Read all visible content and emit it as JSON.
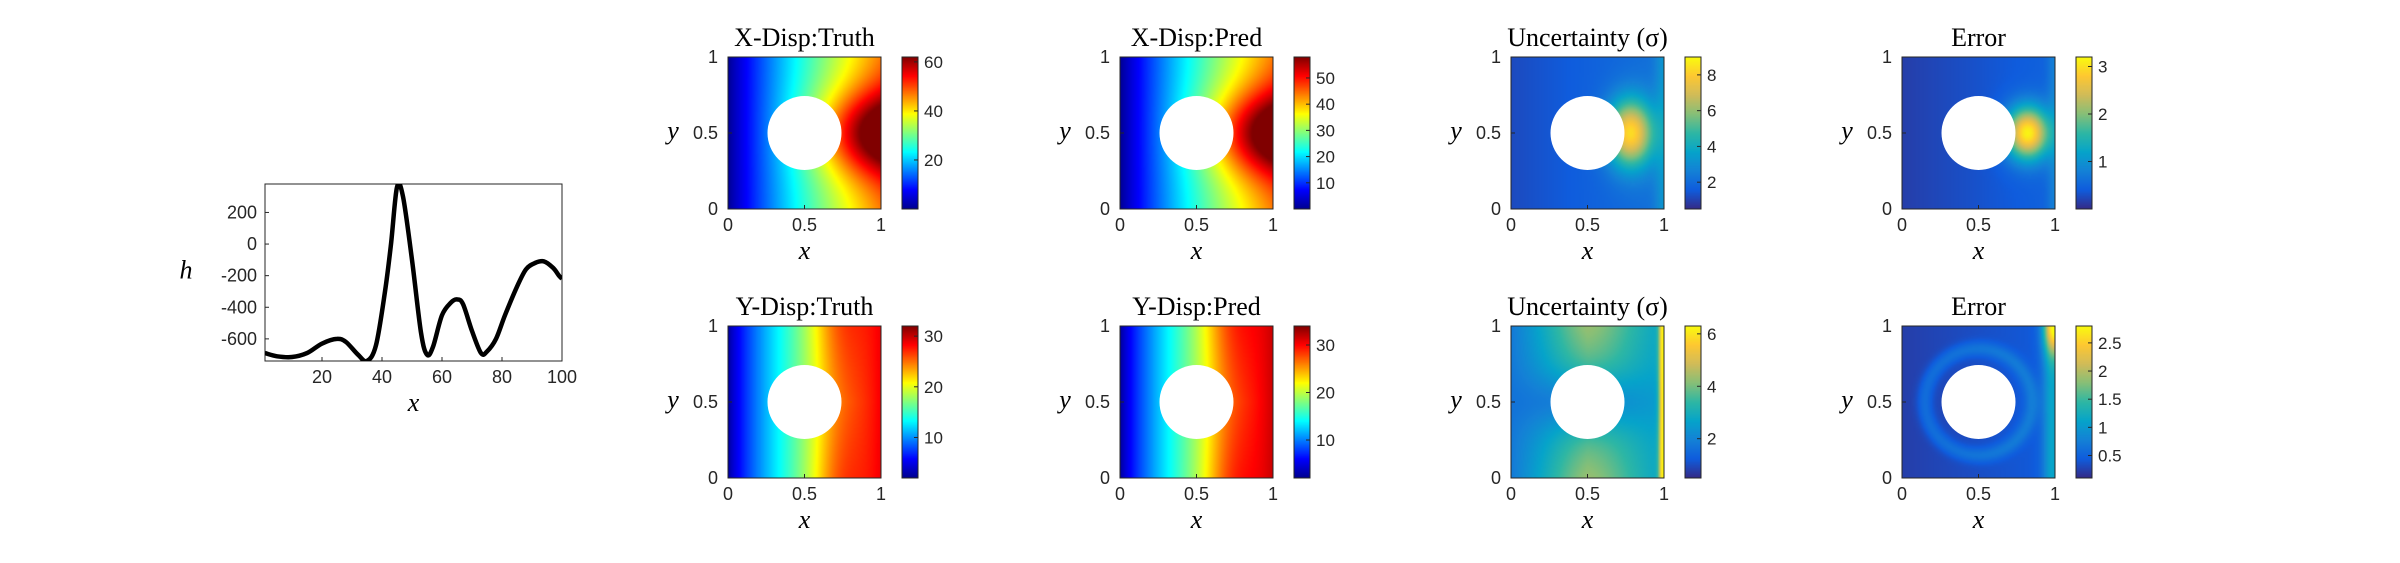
{
  "colors": {
    "jet": [
      "#00008f",
      "#0000ff",
      "#00ffff",
      "#ffff00",
      "#ff0000",
      "#800000"
    ],
    "parula": [
      "#352a87",
      "#0f5cdd",
      "#1481d6",
      "#06a4ca",
      "#2eb7a4",
      "#87bf77",
      "#d1bb59",
      "#fec832",
      "#f9fb0e"
    ],
    "line": "#000000",
    "hole": "#ffffff"
  },
  "chart_data": [
    {
      "type": "line",
      "xlabel": "x",
      "ylabel": "h",
      "xlim": [
        1,
        100
      ],
      "ylim": [
        -740,
        380
      ],
      "xticks": [
        "20",
        "40",
        "60",
        "80",
        "100"
      ],
      "yticks": [
        "200",
        "0",
        "-200",
        "-400",
        "-600"
      ],
      "series": [
        {
          "x": [
            1,
            5,
            10,
            15,
            20,
            25,
            28,
            32,
            35,
            38,
            41,
            43,
            45,
            47,
            50,
            53,
            55,
            57,
            60,
            63,
            65,
            67,
            70,
            73,
            75,
            78,
            81,
            85,
            88,
            91,
            94,
            97,
            99,
            100
          ],
          "values": [
            -690,
            -710,
            -715,
            -690,
            -630,
            -600,
            -620,
            -700,
            -740,
            -640,
            -300,
            0,
            360,
            300,
            -100,
            -560,
            -700,
            -650,
            -450,
            -370,
            -350,
            -380,
            -550,
            -690,
            -680,
            -600,
            -450,
            -270,
            -160,
            -120,
            -110,
            -150,
            -200,
            -220
          ]
        }
      ]
    },
    {
      "type": "heatmap",
      "title": "X-Disp:Truth",
      "xlabel": "x",
      "ylabel": "y",
      "xticks": [
        "0",
        "0.5",
        "1"
      ],
      "yticks": [
        "1",
        "0.5",
        "0"
      ],
      "colormap": "jet",
      "clim": [
        0,
        62
      ],
      "colorbar_ticks": [
        "60",
        "40",
        "20"
      ]
    },
    {
      "type": "heatmap",
      "title": "X-Disp:Pred",
      "xlabel": "x",
      "ylabel": "y",
      "xticks": [
        "0",
        "0.5",
        "1"
      ],
      "yticks": [
        "1",
        "0.5",
        "0"
      ],
      "colormap": "jet",
      "clim": [
        0,
        58
      ],
      "colorbar_ticks": [
        "50",
        "40",
        "30",
        "20",
        "10"
      ]
    },
    {
      "type": "heatmap",
      "title": "Uncertainty (σ)",
      "xlabel": "x",
      "ylabel": "y",
      "xticks": [
        "0",
        "0.5",
        "1"
      ],
      "yticks": [
        "1",
        "0.5",
        "0"
      ],
      "colormap": "parula",
      "clim": [
        0.5,
        9
      ],
      "colorbar_ticks": [
        "8",
        "6",
        "4",
        "2"
      ]
    },
    {
      "type": "heatmap",
      "title": "Error",
      "xlabel": "x",
      "ylabel": "y",
      "xticks": [
        "0",
        "0.5",
        "1"
      ],
      "yticks": [
        "1",
        "0.5",
        "0"
      ],
      "colormap": "parula",
      "clim": [
        0,
        3.2
      ],
      "colorbar_ticks": [
        "3",
        "2",
        "1"
      ]
    },
    {
      "type": "heatmap",
      "title": "Y-Disp:Truth",
      "xlabel": "x",
      "ylabel": "y",
      "xticks": [
        "0",
        "0.5",
        "1"
      ],
      "yticks": [
        "1",
        "0.5",
        "0"
      ],
      "colormap": "jet",
      "clim": [
        2,
        32
      ],
      "colorbar_ticks": [
        "30",
        "20",
        "10"
      ]
    },
    {
      "type": "heatmap",
      "title": "Y-Disp:Pred",
      "xlabel": "x",
      "ylabel": "y",
      "xticks": [
        "0",
        "0.5",
        "1"
      ],
      "yticks": [
        "1",
        "0.5",
        "0"
      ],
      "colormap": "jet",
      "clim": [
        2,
        34
      ],
      "colorbar_ticks": [
        "30",
        "20",
        "10"
      ]
    },
    {
      "type": "heatmap",
      "title": "Uncertainty (σ)",
      "xlabel": "x",
      "ylabel": "y",
      "xticks": [
        "0",
        "0.5",
        "1"
      ],
      "yticks": [
        "1",
        "0.5",
        "0"
      ],
      "colormap": "parula",
      "clim": [
        0.5,
        6.3
      ],
      "colorbar_ticks": [
        "6",
        "4",
        "2"
      ]
    },
    {
      "type": "heatmap",
      "title": "Error",
      "xlabel": "x",
      "ylabel": "y",
      "xticks": [
        "0",
        "0.5",
        "1"
      ],
      "yticks": [
        "1",
        "0.5",
        "0"
      ],
      "colormap": "parula",
      "clim": [
        0.1,
        2.8
      ],
      "colorbar_ticks": [
        "2.5",
        "2",
        "1.5",
        "1",
        "0.5"
      ]
    }
  ]
}
